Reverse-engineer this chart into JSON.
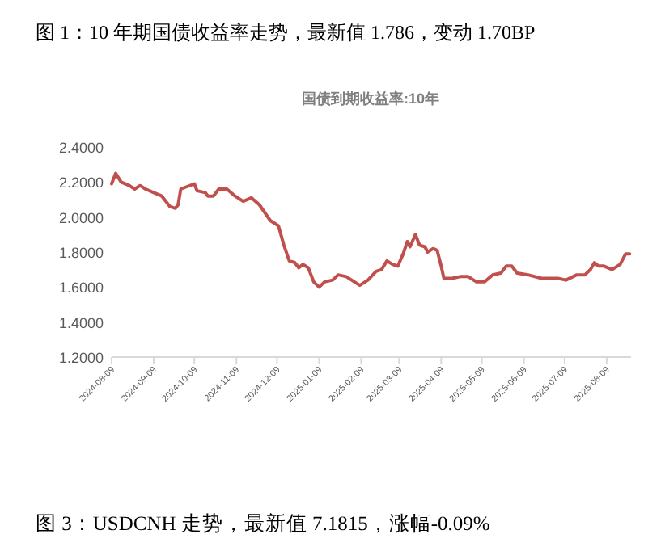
{
  "chart_data": {
    "type": "line",
    "title": "图 1：10 年期国债收益率走势，最新值 1.786，变动 1.70BP",
    "subtitle": "国债到期收益率:10年",
    "annotations": [
      "图 3：USDCNH 走势，最新值 7.1815，涨幅-0.09%"
    ],
    "x": [
      "2024-08-09",
      "2024-08-12",
      "2024-08-16",
      "2024-08-22",
      "2024-08-26",
      "2024-08-30",
      "2024-09-03",
      "2024-09-09",
      "2024-09-15",
      "2024-09-21",
      "2024-09-25",
      "2024-09-27",
      "2024-09-29",
      "2024-10-09",
      "2024-10-11",
      "2024-10-17",
      "2024-10-19",
      "2024-10-23",
      "2024-10-27",
      "2024-11-02",
      "2024-11-08",
      "2024-11-14",
      "2024-11-20",
      "2024-11-26",
      "2024-12-04",
      "2024-12-10",
      "2024-12-14",
      "2024-12-18",
      "2024-12-22",
      "2024-12-25",
      "2024-12-28",
      "2025-01-01",
      "2025-01-05",
      "2025-01-09",
      "2025-01-13",
      "2025-01-19",
      "2025-01-23",
      "2025-01-29",
      "2025-02-04",
      "2025-02-08",
      "2025-02-14",
      "2025-02-20",
      "2025-02-24",
      "2025-02-28",
      "2025-03-04",
      "2025-03-08",
      "2025-03-12",
      "2025-03-15",
      "2025-03-17",
      "2025-03-21",
      "2025-03-24",
      "2025-03-28",
      "2025-03-30",
      "2025-04-03",
      "2025-04-06",
      "2025-04-09",
      "2025-04-11",
      "2025-04-17",
      "2025-04-23",
      "2025-04-29",
      "2025-05-05",
      "2025-05-11",
      "2025-05-17",
      "2025-05-23",
      "2025-05-27",
      "2025-05-31",
      "2025-06-04",
      "2025-06-12",
      "2025-06-22",
      "2025-07-04",
      "2025-07-10",
      "2025-07-18",
      "2025-07-24",
      "2025-07-28",
      "2025-07-31",
      "2025-08-03",
      "2025-08-07",
      "2025-08-13",
      "2025-08-19",
      "2025-08-23",
      "2025-08-26"
    ],
    "series": [
      {
        "color": "#c0504d",
        "values": [
          2.19,
          2.25,
          2.2,
          2.18,
          2.16,
          2.18,
          2.16,
          2.14,
          2.12,
          2.06,
          2.05,
          2.07,
          2.16,
          2.19,
          2.15,
          2.14,
          2.12,
          2.12,
          2.16,
          2.16,
          2.12,
          2.09,
          2.11,
          2.07,
          1.98,
          1.95,
          1.84,
          1.75,
          1.74,
          1.71,
          1.73,
          1.71,
          1.63,
          1.6,
          1.63,
          1.64,
          1.67,
          1.66,
          1.63,
          1.61,
          1.64,
          1.69,
          1.7,
          1.75,
          1.73,
          1.72,
          1.79,
          1.86,
          1.83,
          1.9,
          1.84,
          1.83,
          1.8,
          1.82,
          1.81,
          1.72,
          1.65,
          1.65,
          1.66,
          1.66,
          1.63,
          1.63,
          1.67,
          1.68,
          1.72,
          1.72,
          1.68,
          1.67,
          1.65,
          1.65,
          1.64,
          1.67,
          1.67,
          1.7,
          1.74,
          1.72,
          1.72,
          1.7,
          1.73,
          1.79,
          1.79
        ]
      }
    ],
    "xlim": [
      "2024-08-09",
      "2025-08-27"
    ],
    "xticks": [
      "2024-08-09",
      "2024-09-09",
      "2024-10-09",
      "2024-11-09",
      "2024-12-09",
      "2025-01-09",
      "2025-02-09",
      "2025-03-09",
      "2025-04-09",
      "2025-05-09",
      "2025-06-09",
      "2025-07-09",
      "2025-08-09"
    ],
    "ylim": [
      1.2,
      2.4
    ],
    "yticks": [
      {
        "value": 1.2,
        "label": "1.2000"
      },
      {
        "value": 1.4,
        "label": "1.4000"
      },
      {
        "value": 1.6,
        "label": "1.6000"
      },
      {
        "value": 1.8,
        "label": "1.8000"
      },
      {
        "value": 2.0,
        "label": "2.0000"
      },
      {
        "value": 2.2,
        "label": "2.2000"
      },
      {
        "value": 2.4,
        "label": "2.4000"
      }
    ],
    "grid": false,
    "marker": "none",
    "line_style": "solid"
  }
}
